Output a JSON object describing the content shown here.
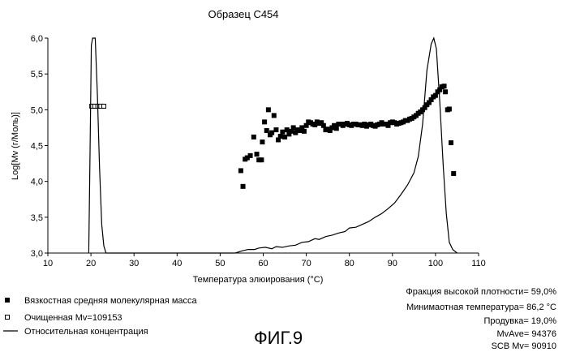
{
  "figure": {
    "caption": "ФИГ.9"
  },
  "legend": {
    "items": [
      {
        "marker": "filled-square",
        "label": "Вязкостная средняя молекулярная масса"
      },
      {
        "marker": "open-square",
        "label": "Очищенная Mv=109153"
      },
      {
        "marker": "line",
        "label": "Относительная концентрация"
      }
    ]
  },
  "stats": {
    "lines": [
      "Фракция высокой плотности= 59,0%",
      "Минимаотная температура= 86,2 °C",
      "Продувка= 19,0%",
      "MvAve= 94376",
      "SCB Mv= 90910"
    ]
  },
  "chart_data": {
    "type": "scatter",
    "title": "Образец С454",
    "xlabel": "Температура элюирования (°C)",
    "ylabel": "Log[Mv (г/Моль)]",
    "xlim": [
      10,
      110
    ],
    "ylim": [
      3.0,
      6.0
    ],
    "x_ticks": [
      10,
      20,
      30,
      40,
      50,
      60,
      70,
      80,
      90,
      100,
      110
    ],
    "y_ticks": [
      3.0,
      3.5,
      4.0,
      4.5,
      5.0,
      5.5,
      6.0
    ],
    "x_tick_labels": [
      "10",
      "20",
      "30",
      "40",
      "50",
      "60",
      "70",
      "80",
      "90",
      "100",
      "110"
    ],
    "y_tick_labels": [
      "3,0",
      "3,5",
      "4,0",
      "4,5",
      "5,0",
      "5,5",
      "6,0"
    ],
    "grid": false,
    "series": [
      {
        "name": "Вязкостная средняя молекулярная масса",
        "kind": "scatter-filled-square",
        "points": [
          [
            54.8,
            4.15
          ],
          [
            55.3,
            3.93
          ],
          [
            55.8,
            4.31
          ],
          [
            56.3,
            4.33
          ],
          [
            57.0,
            4.36
          ],
          [
            57.8,
            4.62
          ],
          [
            58.5,
            4.38
          ],
          [
            59.0,
            4.3
          ],
          [
            59.6,
            4.3
          ],
          [
            59.8,
            4.55
          ],
          [
            60.3,
            4.83
          ],
          [
            60.8,
            4.71
          ],
          [
            61.2,
            5.0
          ],
          [
            61.6,
            4.65
          ],
          [
            62.0,
            4.68
          ],
          [
            62.5,
            4.92
          ],
          [
            63.0,
            4.72
          ],
          [
            63.5,
            4.58
          ],
          [
            64.0,
            4.63
          ],
          [
            64.5,
            4.69
          ],
          [
            65.0,
            4.62
          ],
          [
            65.5,
            4.72
          ],
          [
            66.0,
            4.66
          ],
          [
            66.5,
            4.7
          ],
          [
            67.0,
            4.75
          ],
          [
            67.5,
            4.68
          ],
          [
            68.0,
            4.72
          ],
          [
            68.5,
            4.71
          ],
          [
            69.0,
            4.75
          ],
          [
            69.5,
            4.7
          ],
          [
            70.0,
            4.78
          ],
          [
            70.5,
            4.83
          ],
          [
            71.0,
            4.82
          ],
          [
            71.5,
            4.8
          ],
          [
            72.0,
            4.79
          ],
          [
            72.5,
            4.83
          ],
          [
            73.0,
            4.81
          ],
          [
            73.5,
            4.82
          ],
          [
            74.0,
            4.78
          ],
          [
            74.5,
            4.72
          ],
          [
            75.0,
            4.73
          ],
          [
            75.5,
            4.71
          ],
          [
            76.0,
            4.75
          ],
          [
            76.5,
            4.78
          ],
          [
            77.0,
            4.74
          ],
          [
            77.5,
            4.8
          ],
          [
            78.0,
            4.8
          ],
          [
            78.5,
            4.78
          ],
          [
            79.0,
            4.8
          ],
          [
            79.5,
            4.81
          ],
          [
            80.0,
            4.79
          ],
          [
            80.5,
            4.78
          ],
          [
            81.0,
            4.8
          ],
          [
            81.5,
            4.8
          ],
          [
            82.0,
            4.79
          ],
          [
            82.5,
            4.79
          ],
          [
            83.0,
            4.78
          ],
          [
            83.5,
            4.8
          ],
          [
            84.0,
            4.77
          ],
          [
            84.5,
            4.79
          ],
          [
            85.0,
            4.8
          ],
          [
            85.5,
            4.78
          ],
          [
            86.0,
            4.77
          ],
          [
            86.5,
            4.79
          ],
          [
            87.0,
            4.8
          ],
          [
            87.5,
            4.82
          ],
          [
            88.0,
            4.8
          ],
          [
            88.5,
            4.8
          ],
          [
            89.0,
            4.78
          ],
          [
            89.5,
            4.82
          ],
          [
            90.0,
            4.83
          ],
          [
            90.5,
            4.82
          ],
          [
            91.0,
            4.8
          ],
          [
            91.5,
            4.81
          ],
          [
            92.0,
            4.82
          ],
          [
            92.5,
            4.83
          ],
          [
            93.0,
            4.85
          ],
          [
            93.5,
            4.85
          ],
          [
            94.0,
            4.87
          ],
          [
            94.5,
            4.88
          ],
          [
            95.0,
            4.9
          ],
          [
            95.5,
            4.92
          ],
          [
            96.0,
            4.95
          ],
          [
            96.5,
            4.97
          ],
          [
            97.0,
            5.0
          ],
          [
            97.5,
            5.03
          ],
          [
            98.0,
            5.07
          ],
          [
            98.5,
            5.1
          ],
          [
            99.0,
            5.14
          ],
          [
            99.5,
            5.18
          ],
          [
            100.0,
            5.2
          ],
          [
            100.5,
            5.25
          ],
          [
            101.0,
            5.28
          ],
          [
            101.5,
            5.32
          ],
          [
            102.0,
            5.33
          ],
          [
            102.3,
            5.25
          ],
          [
            102.8,
            5.0
          ],
          [
            103.2,
            5.01
          ],
          [
            103.6,
            4.54
          ],
          [
            104.2,
            4.11
          ]
        ]
      },
      {
        "name": "Очищенная Mv=109153",
        "kind": "scatter-open-square",
        "points": [
          [
            20.2,
            5.05
          ],
          [
            20.9,
            5.05
          ],
          [
            21.6,
            5.05
          ],
          [
            22.3,
            5.05
          ],
          [
            23.0,
            5.05
          ]
        ]
      },
      {
        "name": "Относительная концентрация",
        "kind": "line",
        "points": [
          [
            19.5,
            3.0
          ],
          [
            19.8,
            4.4
          ],
          [
            20.1,
            5.9
          ],
          [
            20.4,
            6.0
          ],
          [
            21.0,
            6.0
          ],
          [
            21.5,
            5.2
          ],
          [
            22.0,
            4.2
          ],
          [
            22.5,
            3.4
          ],
          [
            23.0,
            3.1
          ],
          [
            23.5,
            3.0
          ],
          [
            53.5,
            3.0
          ],
          [
            55.0,
            3.03
          ],
          [
            56.5,
            3.05
          ],
          [
            58.0,
            3.05
          ],
          [
            59.0,
            3.07
          ],
          [
            60.5,
            3.08
          ],
          [
            62.0,
            3.06
          ],
          [
            63.0,
            3.09
          ],
          [
            64.5,
            3.08
          ],
          [
            66.0,
            3.1
          ],
          [
            67.5,
            3.11
          ],
          [
            69.0,
            3.15
          ],
          [
            70.5,
            3.16
          ],
          [
            72.0,
            3.2
          ],
          [
            73.0,
            3.19
          ],
          [
            74.5,
            3.23
          ],
          [
            76.0,
            3.25
          ],
          [
            77.5,
            3.28
          ],
          [
            79.0,
            3.3
          ],
          [
            80.0,
            3.35
          ],
          [
            81.5,
            3.36
          ],
          [
            83.0,
            3.4
          ],
          [
            84.5,
            3.44
          ],
          [
            86.0,
            3.5
          ],
          [
            87.5,
            3.55
          ],
          [
            89.0,
            3.62
          ],
          [
            90.5,
            3.7
          ],
          [
            92.0,
            3.82
          ],
          [
            93.5,
            3.95
          ],
          [
            95.0,
            4.12
          ],
          [
            96.0,
            4.35
          ],
          [
            97.0,
            4.8
          ],
          [
            98.0,
            5.55
          ],
          [
            99.0,
            5.92
          ],
          [
            99.6,
            6.0
          ],
          [
            100.2,
            5.85
          ],
          [
            101.0,
            5.1
          ],
          [
            101.8,
            4.2
          ],
          [
            102.5,
            3.55
          ],
          [
            103.2,
            3.15
          ],
          [
            104.0,
            3.05
          ],
          [
            105.0,
            3.0
          ]
        ]
      }
    ]
  }
}
